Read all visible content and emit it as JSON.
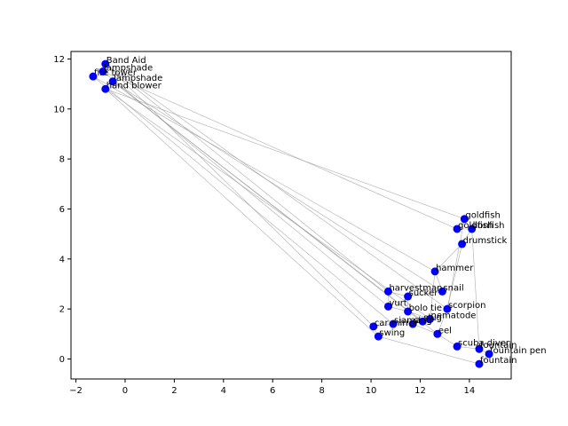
{
  "chart_data": {
    "type": "scatter",
    "title": "",
    "xlabel": "",
    "ylabel": "",
    "xlim": [
      -2.2,
      15.7
    ],
    "ylim": [
      -0.8,
      12.3
    ],
    "xticks": [
      -2,
      0,
      2,
      4,
      6,
      8,
      10,
      12,
      14
    ],
    "yticks": [
      0,
      2,
      4,
      6,
      8,
      10,
      12
    ],
    "grid": false,
    "legend": "none",
    "point_color": "#0000ff",
    "edge_color": "#999999",
    "points": [
      {
        "label": "Band Aid",
        "x": -0.8,
        "y": 11.8
      },
      {
        "label": "lampshade",
        "x": -0.9,
        "y": 11.5
      },
      {
        "label": "lampshade",
        "x": -0.5,
        "y": 11.1
      },
      {
        "label": "fire tower",
        "x": -1.3,
        "y": 11.3
      },
      {
        "label": "hand blower",
        "x": -0.8,
        "y": 10.8
      },
      {
        "label": "goldfish",
        "x": 13.8,
        "y": 5.6
      },
      {
        "label": "goldfish",
        "x": 13.5,
        "y": 5.2
      },
      {
        "label": "lionfish",
        "x": 14.1,
        "y": 5.2
      },
      {
        "label": "drumstick",
        "x": 13.7,
        "y": 4.6
      },
      {
        "label": "hammer",
        "x": 12.6,
        "y": 3.5
      },
      {
        "label": "harvestman",
        "x": 10.7,
        "y": 2.7
      },
      {
        "label": "snail",
        "x": 12.9,
        "y": 2.7
      },
      {
        "label": "sucker",
        "x": 11.5,
        "y": 2.5
      },
      {
        "label": "yurt",
        "x": 10.7,
        "y": 2.1
      },
      {
        "label": "scorpion",
        "x": 13.1,
        "y": 2.0
      },
      {
        "label": "bolo tie",
        "x": 11.5,
        "y": 1.9
      },
      {
        "label": "nematode",
        "x": 12.4,
        "y": 1.6
      },
      {
        "label": "slug",
        "x": 12.1,
        "y": 1.5
      },
      {
        "label": "siamang",
        "x": 10.9,
        "y": 1.4
      },
      {
        "label": "slug",
        "x": 11.7,
        "y": 1.4
      },
      {
        "label": "car mirror",
        "x": 10.1,
        "y": 1.3
      },
      {
        "label": "eel",
        "x": 12.7,
        "y": 1.0
      },
      {
        "label": "swing",
        "x": 10.3,
        "y": 0.9
      },
      {
        "label": "scuba diver",
        "x": 13.5,
        "y": 0.5
      },
      {
        "label": "fountain",
        "x": 14.4,
        "y": 0.4
      },
      {
        "label": "fountain pen",
        "x": 14.8,
        "y": 0.2
      },
      {
        "label": "fountain",
        "x": 14.4,
        "y": -0.2
      }
    ],
    "edges": [
      [
        0,
        10
      ],
      [
        0,
        20
      ],
      [
        1,
        6
      ],
      [
        1,
        13
      ],
      [
        2,
        11
      ],
      [
        2,
        21
      ],
      [
        3,
        9
      ],
      [
        3,
        18
      ],
      [
        4,
        5
      ],
      [
        4,
        22
      ],
      [
        4,
        16
      ],
      [
        2,
        17
      ],
      [
        0,
        14
      ],
      [
        5,
        6
      ],
      [
        6,
        7
      ],
      [
        7,
        8
      ],
      [
        8,
        9
      ],
      [
        9,
        11
      ],
      [
        11,
        12
      ],
      [
        12,
        10
      ],
      [
        10,
        13
      ],
      [
        13,
        15
      ],
      [
        15,
        16
      ],
      [
        16,
        17
      ],
      [
        17,
        19
      ],
      [
        19,
        18
      ],
      [
        18,
        20
      ],
      [
        20,
        22
      ],
      [
        22,
        26
      ],
      [
        26,
        25
      ],
      [
        25,
        24
      ],
      [
        24,
        23
      ],
      [
        23,
        21
      ],
      [
        21,
        14
      ],
      [
        14,
        8
      ],
      [
        7,
        24
      ],
      [
        9,
        16
      ],
      [
        12,
        15
      ],
      [
        19,
        21
      ],
      [
        5,
        14
      ]
    ]
  }
}
